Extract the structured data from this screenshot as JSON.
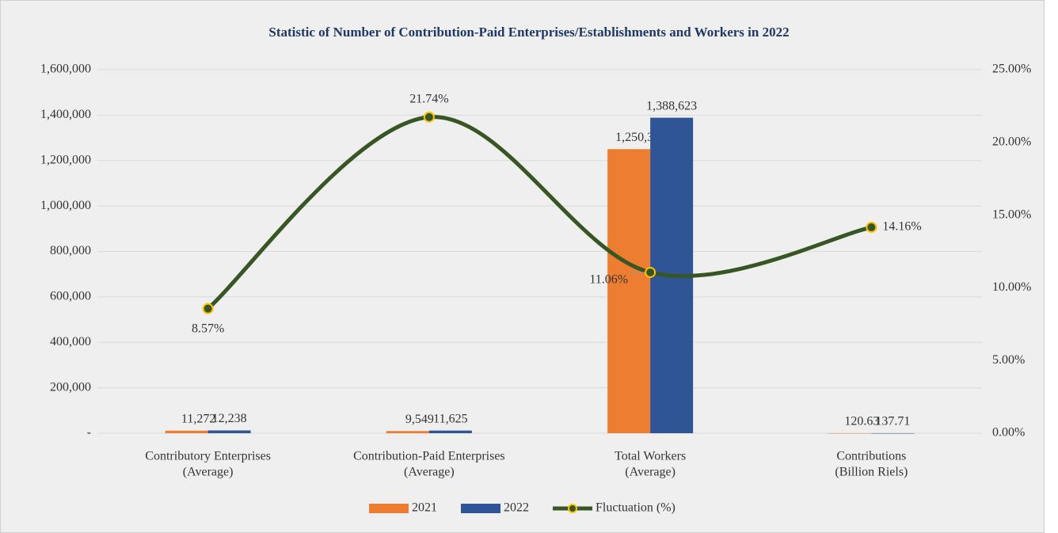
{
  "chart_data": {
    "type": "bar-line",
    "title": "Statistic of Number of Contribution-Paid Enterprises/Establishments and Workers in 2022",
    "categories": [
      [
        "Contributory Enterprises",
        "(Average)"
      ],
      [
        "Contribution-Paid Enterprises",
        "(Average)"
      ],
      [
        "Total Workers",
        "(Average)"
      ],
      [
        "Contributions",
        "(Billion Riels)"
      ]
    ],
    "series": [
      {
        "name": "2021",
        "type": "bar",
        "color": "#ed7d31",
        "values": [
          11272,
          9549,
          1250308,
          120.63
        ],
        "value_labels": [
          "11,272",
          "9,549",
          "1,250,308",
          "120.63"
        ]
      },
      {
        "name": "2022",
        "type": "bar",
        "color": "#2f5597",
        "values": [
          12238,
          11625,
          1388623,
          137.71
        ],
        "value_labels": [
          "12,238",
          "11,625",
          "1,388,623",
          "137.71"
        ]
      },
      {
        "name": "Fluctuation (%)",
        "type": "line",
        "axis": "y2",
        "color": "#375623",
        "marker_color": "#ffc000",
        "smooth": true,
        "values": [
          8.57,
          21.74,
          11.06,
          14.16
        ],
        "value_labels": [
          "8.57%",
          "21.74%",
          "11.06%",
          "14.16%"
        ]
      }
    ],
    "ylim": [
      0,
      1600000
    ],
    "yticks": [
      {
        "value": 0,
        "label": "-"
      },
      {
        "value": 200000,
        "label": "200,000"
      },
      {
        "value": 400000,
        "label": "400,000"
      },
      {
        "value": 600000,
        "label": "600,000"
      },
      {
        "value": 800000,
        "label": "800,000"
      },
      {
        "value": 1000000,
        "label": "1,000,000"
      },
      {
        "value": 1200000,
        "label": "1,200,000"
      },
      {
        "value": 1400000,
        "label": "1,400,000"
      },
      {
        "value": 1600000,
        "label": "1,600,000"
      }
    ],
    "y2lim": [
      0,
      25
    ],
    "y2ticks": [
      {
        "value": 0,
        "label": "0.00%"
      },
      {
        "value": 5,
        "label": "5.00%"
      },
      {
        "value": 10,
        "label": "10.00%"
      },
      {
        "value": 15,
        "label": "15.00%"
      },
      {
        "value": 20,
        "label": "20.00%"
      },
      {
        "value": 25,
        "label": "25.00%"
      }
    ],
    "grid": true,
    "legend": "bottom"
  }
}
